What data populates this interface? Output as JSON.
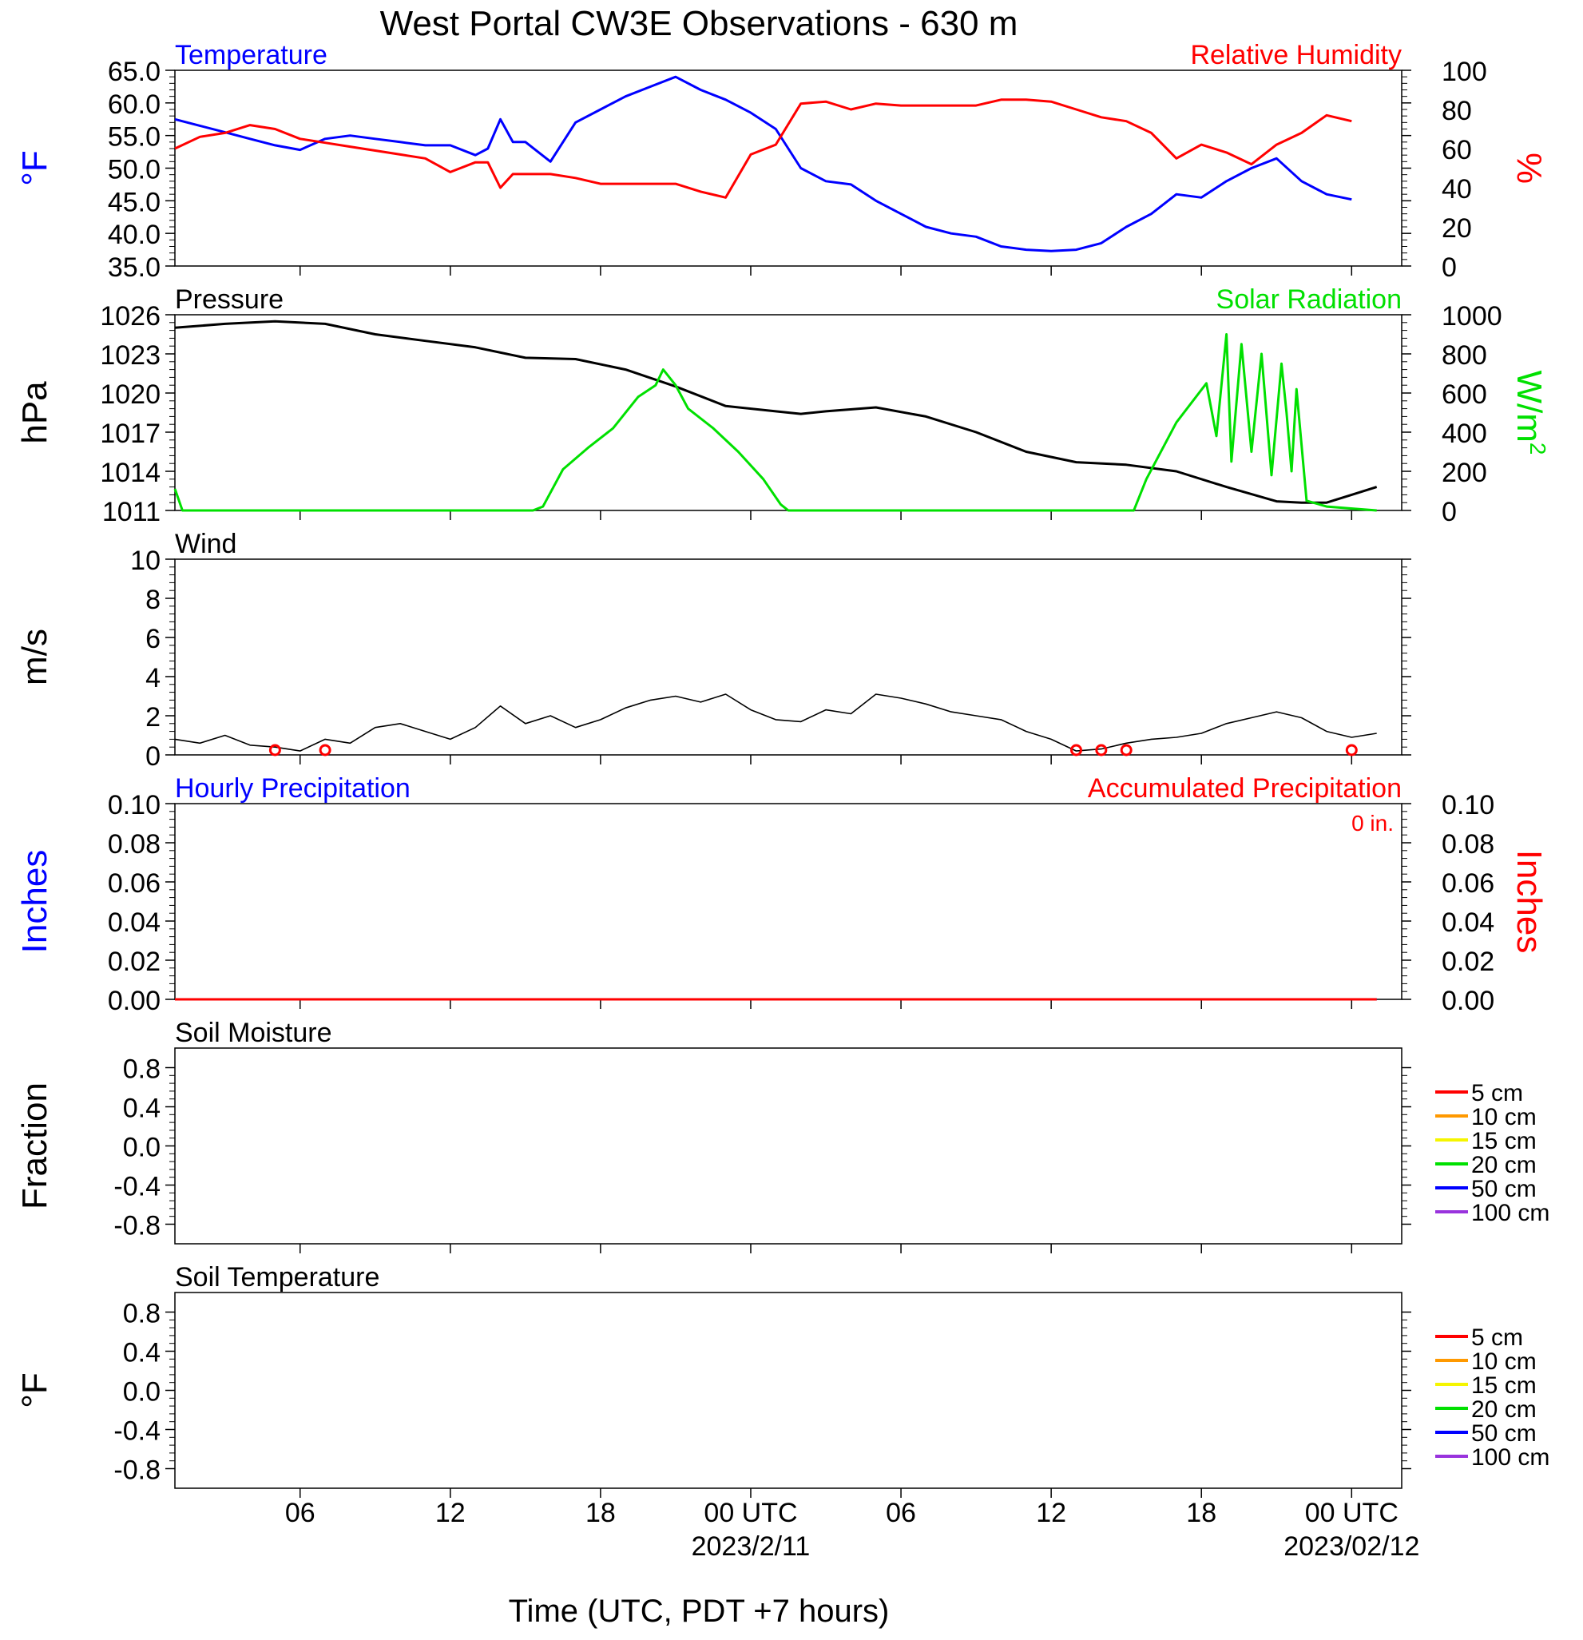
{
  "title": "West Portal CW3E Observations - 630 m",
  "xlabel": "Time (UTC, PDT +7 hours)",
  "colors": {
    "blue": "#0000ff",
    "red": "#ff0000",
    "green": "#00e000",
    "black": "#000000",
    "orange": "#ff9900",
    "yellow": "#f5f500",
    "purple": "#9933dd"
  },
  "chart_data": [
    {
      "type": "line",
      "name": "temperature-rh",
      "left_title": "Temperature",
      "right_title": "Relative Humidity",
      "ylabel_left": "°F",
      "ylabel_right": "%",
      "ylim_left": [
        35,
        65
      ],
      "ylim_right": [
        0,
        100
      ],
      "yticks_left": [
        "35.0",
        "40.0",
        "45.0",
        "50.0",
        "55.0",
        "60.0",
        "65.0"
      ],
      "yticks_right": [
        "0",
        "20",
        "40",
        "60",
        "80",
        "100"
      ],
      "x_hours": [
        0,
        1,
        2,
        3,
        4,
        5,
        6,
        7,
        8,
        9,
        10,
        11,
        12,
        12.5,
        13,
        13.5,
        14,
        15,
        16,
        17,
        18,
        19,
        20,
        21,
        22,
        23,
        24,
        25,
        26,
        27,
        28,
        29,
        30,
        31,
        32,
        33,
        34,
        35,
        36,
        37,
        38,
        39,
        40,
        41,
        42,
        43,
        44,
        45,
        46,
        47,
        48,
        49
      ],
      "series": [
        {
          "name": "Temperature",
          "axis": "left",
          "color": "#0000ff",
          "values": [
            57.5,
            56.5,
            55.5,
            54.5,
            53.5,
            52.8,
            54.5,
            55,
            54.5,
            54,
            53.5,
            53.5,
            52,
            53,
            57.5,
            54,
            54,
            51,
            57,
            59,
            61,
            62.5,
            64,
            62,
            60.5,
            58.5,
            56,
            50,
            48,
            47.5,
            45,
            43,
            41,
            40,
            39.5,
            38,
            37.5,
            37.3,
            37.5,
            38.5,
            41,
            43,
            46,
            45.5,
            48,
            50,
            51.5,
            48,
            46,
            45.2
          ]
        },
        {
          "name": "Relative Humidity",
          "axis": "right",
          "color": "#ff0000",
          "values": [
            60,
            66,
            68,
            72,
            70,
            65,
            63,
            61,
            59,
            57,
            55,
            48,
            53,
            53,
            40,
            47,
            47,
            47,
            45,
            42,
            42,
            42,
            42,
            38,
            35,
            57,
            62,
            83,
            84,
            80,
            83,
            82,
            82,
            82,
            82,
            85,
            85,
            84,
            80,
            76,
            74,
            68,
            55,
            62,
            58,
            52,
            62,
            68,
            77,
            74
          ]
        }
      ]
    },
    {
      "type": "line",
      "name": "pressure-solar",
      "left_title": "Pressure",
      "right_title": "Solar Radiation",
      "ylabel_left": "hPa",
      "ylim_left": [
        1011,
        1026
      ],
      "ylim_right": [
        0,
        1000
      ],
      "yticks_left": [
        "1011",
        "1014",
        "1017",
        "1020",
        "1023",
        "1026"
      ],
      "yticks_right": [
        "0",
        "200",
        "400",
        "600",
        "800",
        "1000"
      ],
      "series": [
        {
          "name": "Pressure",
          "axis": "left",
          "color": "#000000",
          "x": [
            0,
            2,
            4,
            6,
            8,
            10,
            12,
            14,
            16,
            18,
            20,
            22,
            24,
            25,
            26,
            28,
            30,
            32,
            34,
            36,
            38,
            40,
            42,
            44,
            45,
            46,
            47,
            48
          ],
          "values": [
            1025,
            1025.3,
            1025.5,
            1025.3,
            1024.5,
            1024,
            1023.5,
            1022.7,
            1022.6,
            1021.8,
            1020.5,
            1019,
            1018.6,
            1018.4,
            1018.6,
            1018.9,
            1018.2,
            1017,
            1015.5,
            1014.7,
            1014.5,
            1014,
            1012.8,
            1011.7,
            1011.6,
            1011.6,
            1012.2,
            1012.8
          ]
        },
        {
          "name": "Solar Radiation",
          "axis": "right",
          "color": "#00e000",
          "x": [
            0,
            0.3,
            1,
            14.3,
            14.7,
            15.5,
            16.5,
            17.5,
            18.5,
            19.2,
            19.5,
            20,
            20.5,
            21.5,
            22.5,
            23.5,
            24.2,
            24.5,
            32,
            38.3,
            38.8,
            40,
            41.2,
            41.6,
            42,
            42.2,
            42.6,
            43,
            43.4,
            43.8,
            44.2,
            44.4,
            44.6,
            44.8,
            45.2,
            46,
            48
          ],
          "values": [
            110,
            0,
            0,
            0,
            20,
            210,
            320,
            420,
            580,
            640,
            720,
            640,
            520,
            420,
            300,
            160,
            30,
            0,
            0,
            0,
            160,
            450,
            650,
            380,
            900,
            250,
            850,
            300,
            800,
            180,
            750,
            500,
            200,
            620,
            50,
            20,
            0
          ]
        }
      ]
    },
    {
      "type": "line",
      "name": "wind",
      "left_title": "Wind",
      "ylabel_left": "m/s",
      "ylim_left": [
        0,
        10
      ],
      "yticks_left": [
        "0",
        "2",
        "4",
        "6",
        "8",
        "10"
      ],
      "series": [
        {
          "name": "Wind",
          "axis": "left",
          "color": "#000000",
          "x": [
            0,
            1,
            2,
            3,
            4,
            5,
            6,
            7,
            8,
            9,
            10,
            11,
            12,
            13,
            14,
            15,
            16,
            17,
            18,
            19,
            20,
            21,
            22,
            23,
            24,
            25,
            26,
            27,
            28,
            29,
            30,
            31,
            32,
            33,
            34,
            35,
            36,
            37,
            38,
            39,
            40,
            41,
            42,
            43,
            44,
            45,
            46,
            47,
            48
          ],
          "values": [
            0.8,
            0.6,
            1.0,
            0.5,
            0.4,
            0.2,
            0.8,
            0.6,
            1.4,
            1.6,
            1.2,
            0.8,
            1.4,
            2.5,
            1.6,
            2.0,
            1.4,
            1.8,
            2.4,
            2.8,
            3.0,
            2.7,
            3.1,
            2.3,
            1.8,
            1.7,
            2.3,
            2.1,
            3.1,
            2.9,
            2.6,
            2.2,
            2.0,
            1.8,
            1.2,
            0.8,
            0.2,
            0.3,
            0.6,
            0.8,
            0.9,
            1.1,
            1.6,
            1.9,
            2.2,
            1.9,
            1.2,
            0.9,
            1.1
          ]
        }
      ],
      "calm_hours": [
        4,
        6,
        36,
        37,
        38,
        47
      ]
    },
    {
      "type": "line",
      "name": "precipitation",
      "left_title": "Hourly Precipitation",
      "right_title": "Accumulated Precipitation",
      "annotation": "0 in.",
      "ylabel_left": "Inches",
      "ylabel_right": "Inches",
      "ylim_left": [
        0,
        0.1
      ],
      "ylim_right": [
        0,
        0.1
      ],
      "yticks_left": [
        "0.00",
        "0.02",
        "0.04",
        "0.06",
        "0.08",
        "0.10"
      ],
      "yticks_right": [
        "0.00",
        "0.02",
        "0.04",
        "0.06",
        "0.08",
        "0.10"
      ],
      "series": [
        {
          "name": "Hourly Precipitation",
          "axis": "left",
          "color": "#0000ff",
          "x": [
            0,
            48
          ],
          "values": [
            0,
            0
          ]
        },
        {
          "name": "Accumulated Precipitation",
          "axis": "right",
          "color": "#ff0000",
          "x": [
            0,
            48
          ],
          "values": [
            0,
            0
          ]
        }
      ]
    },
    {
      "type": "line",
      "name": "soil-moisture",
      "left_title": "Soil Moisture",
      "ylabel_left": "Fraction",
      "ylim_left": [
        -1,
        1
      ],
      "yticks_left": [
        "-0.8",
        "-0.4",
        "0.0",
        "0.4",
        "0.8"
      ],
      "legend": [
        "5 cm",
        "10 cm",
        "15 cm",
        "20 cm",
        "50 cm",
        "100 cm"
      ]
    },
    {
      "type": "line",
      "name": "soil-temperature",
      "left_title": "Soil Temperature",
      "ylabel_left": "°F",
      "ylim_left": [
        -1,
        1
      ],
      "yticks_left": [
        "-0.8",
        "-0.4",
        "0.0",
        "0.4",
        "0.8"
      ],
      "legend": [
        "5 cm",
        "10 cm",
        "15 cm",
        "20 cm",
        "50 cm",
        "100 cm"
      ]
    }
  ],
  "xaxis": {
    "range_hours": [
      0,
      49
    ],
    "ticks": [
      {
        "hour": 5,
        "label": "06",
        "date": ""
      },
      {
        "hour": 11,
        "label": "12",
        "date": ""
      },
      {
        "hour": 17,
        "label": "18",
        "date": ""
      },
      {
        "hour": 23,
        "label": "00 UTC",
        "date": "2023/2/11"
      },
      {
        "hour": 29,
        "label": "06",
        "date": ""
      },
      {
        "hour": 35,
        "label": "12",
        "date": ""
      },
      {
        "hour": 41,
        "label": "18",
        "date": ""
      },
      {
        "hour": 47,
        "label": "00 UTC",
        "date": "2023/02/12"
      }
    ]
  }
}
